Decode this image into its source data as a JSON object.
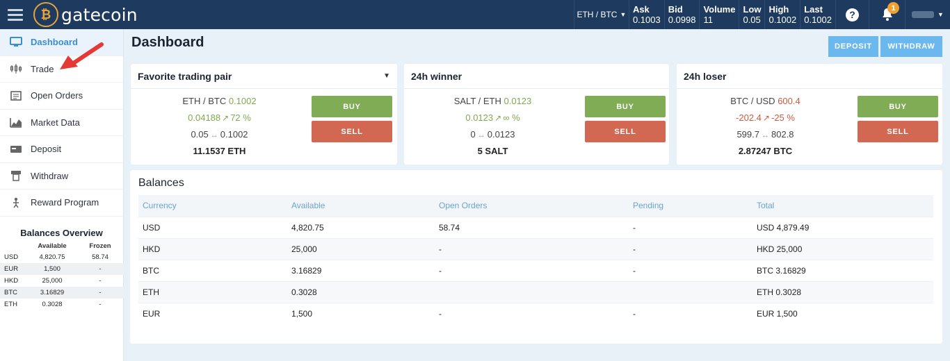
{
  "topbar": {
    "logo_text": "gatecoin",
    "pair": "ETH / BTC",
    "tickers": [
      {
        "label": "Ask",
        "value": "0.1003"
      },
      {
        "label": "Bid",
        "value": "0.0998"
      },
      {
        "label": "Volume",
        "value": "11"
      },
      {
        "label": "Low",
        "value": "0.05"
      },
      {
        "label": "High",
        "value": "0.1002"
      },
      {
        "label": "Last",
        "value": "0.1002"
      }
    ],
    "help_label": "?",
    "notification_count": "1"
  },
  "sidebar": {
    "items": [
      {
        "label": "Dashboard",
        "icon": "monitor-icon",
        "active": true
      },
      {
        "label": "Trade",
        "icon": "trade-candles-icon"
      },
      {
        "label": "Open Orders",
        "icon": "open-orders-icon"
      },
      {
        "label": "Market Data",
        "icon": "chart-area-icon"
      },
      {
        "label": "Deposit",
        "icon": "deposit-card-icon"
      },
      {
        "label": "Withdraw",
        "icon": "withdraw-atm-icon"
      },
      {
        "label": "Reward Program",
        "icon": "reward-person-icon"
      }
    ],
    "balances_overview": {
      "title": "Balances Overview",
      "headers": [
        "",
        "Available",
        "Frozen"
      ],
      "rows": [
        [
          "USD",
          "4,820.75",
          "58.74"
        ],
        [
          "EUR",
          "1,500",
          "-"
        ],
        [
          "HKD",
          "25,000",
          "-"
        ],
        [
          "BTC",
          "3.16829",
          "-"
        ],
        [
          "ETH",
          "0.3028",
          "-"
        ]
      ]
    }
  },
  "main": {
    "title": "Dashboard",
    "deposit_label": "DEPOSIT",
    "withdraw_label": "WITHDRAW",
    "cards": [
      {
        "title": "Favorite trading pair",
        "pair": "ETH / BTC",
        "price": "0.1002",
        "change": "0.04188",
        "pct": "72 %",
        "low": "0.05",
        "high": "0.1002",
        "volume": "11.1537 ETH",
        "trend": "up",
        "buy": "BUY",
        "sell": "SELL"
      },
      {
        "title": "24h winner",
        "pair": "SALT / ETH",
        "price": "0.0123",
        "change": "0.0123",
        "pct": "∞ %",
        "low": "0",
        "high": "0.0123",
        "volume": "5 SALT",
        "trend": "up",
        "buy": "BUY",
        "sell": "SELL"
      },
      {
        "title": "24h loser",
        "pair": "BTC / USD",
        "price": "600.4",
        "change": "-202.4",
        "pct": "-25 %",
        "low": "599.7",
        "high": "802.8",
        "volume": "2.87247 BTC",
        "trend": "down",
        "buy": "BUY",
        "sell": "SELL"
      }
    ],
    "balances": {
      "title": "Balances",
      "headers": [
        "Currency",
        "Available",
        "Open Orders",
        "Pending",
        "Total"
      ],
      "rows": [
        [
          "USD",
          "4,820.75",
          "58.74",
          "-",
          "USD 4,879.49"
        ],
        [
          "HKD",
          "25,000",
          "-",
          "-",
          "HKD 25,000"
        ],
        [
          "BTC",
          "3.16829",
          "-",
          "-",
          "BTC 3.16829"
        ],
        [
          "ETH",
          "0.3028",
          "",
          "",
          "ETH 0.3028"
        ],
        [
          "EUR",
          "1,500",
          "-",
          "-",
          "EUR 1,500"
        ]
      ]
    }
  },
  "colors": {
    "topbar": "#1e3a5f",
    "accent": "#3a8ed0",
    "buy": "#7fac55",
    "sell": "#d26851",
    "annotation_arrow": "#e53935"
  }
}
